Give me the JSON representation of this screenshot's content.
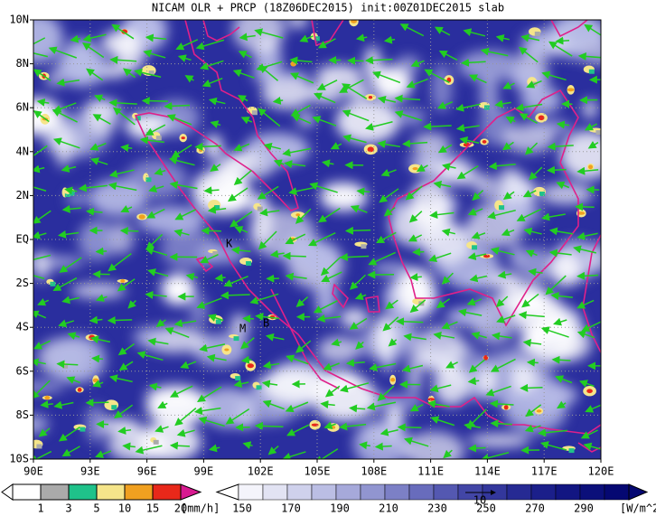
{
  "title": "NICAM OLR + PRCP (18Z06DEC2015) init:00Z01DEC2015 slab",
  "lat_labels": [
    "10N",
    "8N",
    "6N",
    "4N",
    "2N",
    "EQ",
    "2S",
    "4S",
    "6S",
    "8S",
    "10S"
  ],
  "lon_labels": [
    "90E",
    "93E",
    "96E",
    "99E",
    "102E",
    "105E",
    "108E",
    "111E",
    "114E",
    "117E",
    "120E"
  ],
  "place_markers": [
    "K",
    "M",
    "B"
  ],
  "precip_legend": {
    "labels": [
      1,
      3,
      5,
      10,
      15,
      20
    ],
    "unit": "[mm/h]"
  },
  "olr_legend": {
    "labels": [
      150,
      170,
      190,
      210,
      230,
      250,
      270,
      290
    ],
    "unit": "[W/m^2]"
  },
  "vector_reference": "10"
}
